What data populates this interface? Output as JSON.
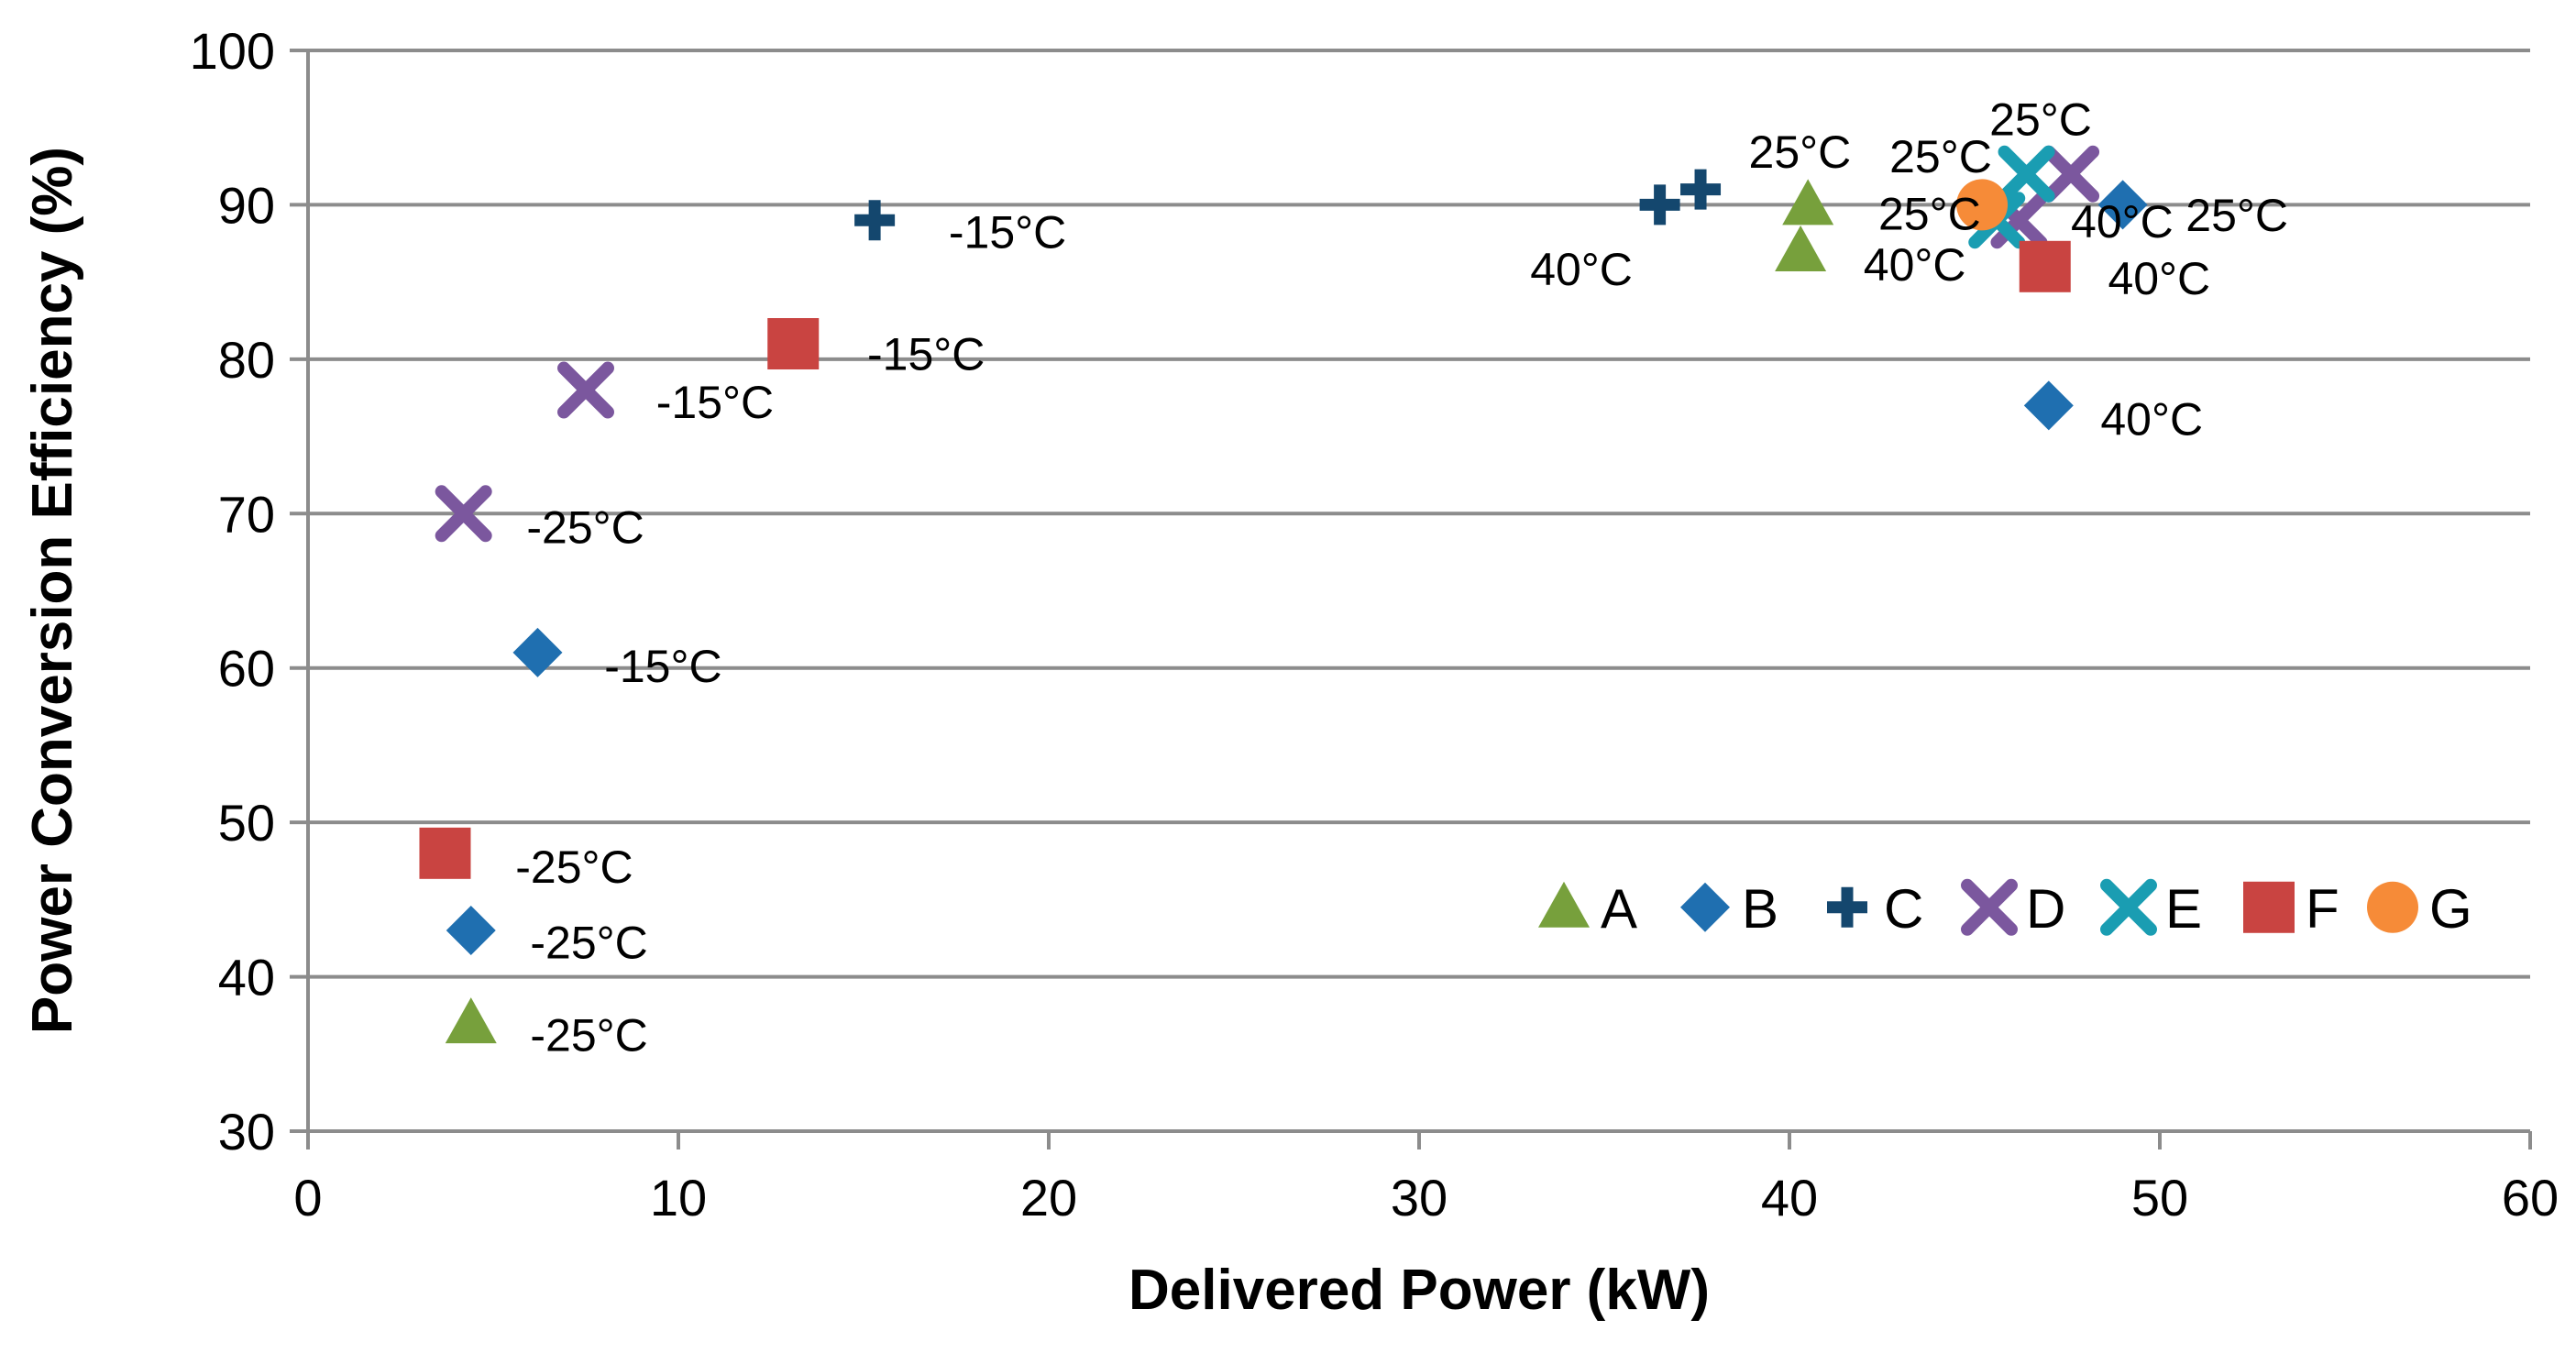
{
  "chart_data": {
    "type": "scatter",
    "title": "",
    "xlabel": "Delivered Power (kW)",
    "ylabel": "Power Conversion Efficiency (%)",
    "xlim": [
      0,
      60
    ],
    "ylim": [
      30,
      100
    ],
    "xticks": [
      0,
      10,
      20,
      30,
      40,
      50,
      60
    ],
    "yticks": [
      30,
      40,
      50,
      60,
      70,
      80,
      90,
      100
    ],
    "grid": "horizontal",
    "legend_position": "bottom-right",
    "series": [
      {
        "name": "A",
        "marker": "triangle",
        "color": "#77A03C",
        "points": [
          {
            "x": 4.4,
            "y": 37
          },
          {
            "x": 40.3,
            "y": 87
          },
          {
            "x": 40.5,
            "y": 90
          }
        ]
      },
      {
        "name": "B",
        "marker": "diamond",
        "color": "#1F6FB0",
        "points": [
          {
            "x": 4.4,
            "y": 43
          },
          {
            "x": 6.2,
            "y": 61
          },
          {
            "x": 47.0,
            "y": 77
          },
          {
            "x": 49.0,
            "y": 90
          }
        ]
      },
      {
        "name": "C",
        "marker": "plus",
        "color": "#14476E",
        "points": [
          {
            "x": 15.3,
            "y": 89
          },
          {
            "x": 36.5,
            "y": 90
          },
          {
            "x": 37.6,
            "y": 91
          }
        ]
      },
      {
        "name": "D",
        "marker": "x",
        "color": "#7B579E",
        "points": [
          {
            "x": 4.2,
            "y": 70
          },
          {
            "x": 7.5,
            "y": 78
          },
          {
            "x": 46.2,
            "y": 89
          },
          {
            "x": 47.6,
            "y": 92
          }
        ]
      },
      {
        "name": "E",
        "marker": "x",
        "color": "#1A9DB2",
        "points": [
          {
            "x": 45.6,
            "y": 89
          },
          {
            "x": 46.4,
            "y": 92
          }
        ]
      },
      {
        "name": "F",
        "marker": "square",
        "color": "#C94441",
        "points": [
          {
            "x": 3.7,
            "y": 48
          },
          {
            "x": 13.1,
            "y": 81
          },
          {
            "x": 46.9,
            "y": 86
          }
        ]
      },
      {
        "name": "G",
        "marker": "circle",
        "color": "#F68B38",
        "points": [
          {
            "x": 45.2,
            "y": 90
          }
        ]
      }
    ],
    "annotations": [
      {
        "text": "-25°C",
        "x": 6.0,
        "y": 35.2
      },
      {
        "text": "-25°C",
        "x": 6.0,
        "y": 41.2
      },
      {
        "text": "-25°C",
        "x": 5.6,
        "y": 46.1
      },
      {
        "text": "-15°C",
        "x": 8.0,
        "y": 59.1
      },
      {
        "text": "-25°C",
        "x": 5.9,
        "y": 68.1
      },
      {
        "text": "-15°C",
        "x": 9.4,
        "y": 76.2
      },
      {
        "text": "-15°C",
        "x": 15.1,
        "y": 79.3
      },
      {
        "text": "-15°C",
        "x": 17.3,
        "y": 87.2
      },
      {
        "text": "40°C",
        "x": 33.0,
        "y": 84.8
      },
      {
        "text": "25°C",
        "x": 38.9,
        "y": 92.4
      },
      {
        "text": "40°C",
        "x": 42.0,
        "y": 85.1
      },
      {
        "text": "25°C",
        "x": 42.7,
        "y": 92.1
      },
      {
        "text": "25°C",
        "x": 42.4,
        "y": 88.4
      },
      {
        "text": "25°C",
        "x": 45.4,
        "y": 94.5
      },
      {
        "text": "40°C",
        "x": 47.6,
        "y": 87.9
      },
      {
        "text": "25°C",
        "x": 50.7,
        "y": 88.3
      },
      {
        "text": "40°C",
        "x": 48.6,
        "y": 84.2
      },
      {
        "text": "40°C",
        "x": 48.4,
        "y": 75.1
      }
    ]
  }
}
